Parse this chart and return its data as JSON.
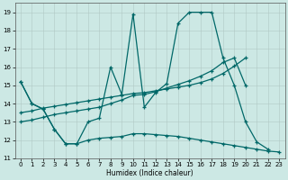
{
  "xlabel": "Humidex (Indice chaleur)",
  "xlim": [
    -0.5,
    23.5
  ],
  "ylim": [
    11,
    19.5
  ],
  "yticks": [
    11,
    12,
    13,
    14,
    15,
    16,
    17,
    18,
    19
  ],
  "xticks": [
    0,
    1,
    2,
    3,
    4,
    5,
    6,
    7,
    8,
    9,
    10,
    11,
    12,
    13,
    14,
    15,
    16,
    17,
    18,
    19,
    20,
    21,
    22,
    23
  ],
  "bg_color": "#cce8e4",
  "line_color": "#006868",
  "grid_color": "#b0c8c4",
  "series1_x": [
    0,
    1,
    2,
    3,
    4,
    5,
    6,
    7,
    8,
    9,
    10,
    11,
    12,
    13,
    14,
    15,
    16,
    17,
    18,
    19,
    20,
    21,
    22
  ],
  "series1_y": [
    15.2,
    14.0,
    13.7,
    12.6,
    11.8,
    11.8,
    13.0,
    13.2,
    16.0,
    14.5,
    18.9,
    13.8,
    14.6,
    15.1,
    18.4,
    19.0,
    19.0,
    19.0,
    16.5,
    15.0,
    13.0,
    11.9,
    11.5
  ],
  "series2_x": [
    0,
    1,
    2,
    3,
    4,
    5,
    6,
    7,
    8,
    9,
    10,
    11,
    12,
    13,
    14,
    15,
    16,
    17,
    18,
    19,
    20,
    21,
    22,
    23
  ],
  "series2_y": [
    15.2,
    14.0,
    13.7,
    12.6,
    11.8,
    11.8,
    12.0,
    12.1,
    12.15,
    12.2,
    12.35,
    12.35,
    12.3,
    12.25,
    12.2,
    12.1,
    12.0,
    11.9,
    11.8,
    11.7,
    11.6,
    11.5,
    11.4,
    11.35
  ],
  "series3_x": [
    0,
    1,
    2,
    3,
    4,
    5,
    6,
    7,
    8,
    9,
    10,
    11,
    12,
    13,
    14,
    15,
    16,
    17,
    18,
    19,
    20
  ],
  "series3_y": [
    13.5,
    13.6,
    13.75,
    13.85,
    13.95,
    14.05,
    14.15,
    14.25,
    14.35,
    14.45,
    14.55,
    14.6,
    14.7,
    14.8,
    14.9,
    15.0,
    15.15,
    15.35,
    15.65,
    16.05,
    16.5
  ],
  "series4_x": [
    0,
    1,
    2,
    3,
    4,
    5,
    6,
    7,
    8,
    9,
    10,
    11,
    12,
    13,
    14,
    15,
    16,
    17,
    18,
    19,
    20
  ],
  "series4_y": [
    13.0,
    13.1,
    13.25,
    13.4,
    13.5,
    13.6,
    13.7,
    13.8,
    14.0,
    14.2,
    14.45,
    14.5,
    14.65,
    14.85,
    15.05,
    15.25,
    15.5,
    15.8,
    16.25,
    16.5,
    15.0
  ]
}
